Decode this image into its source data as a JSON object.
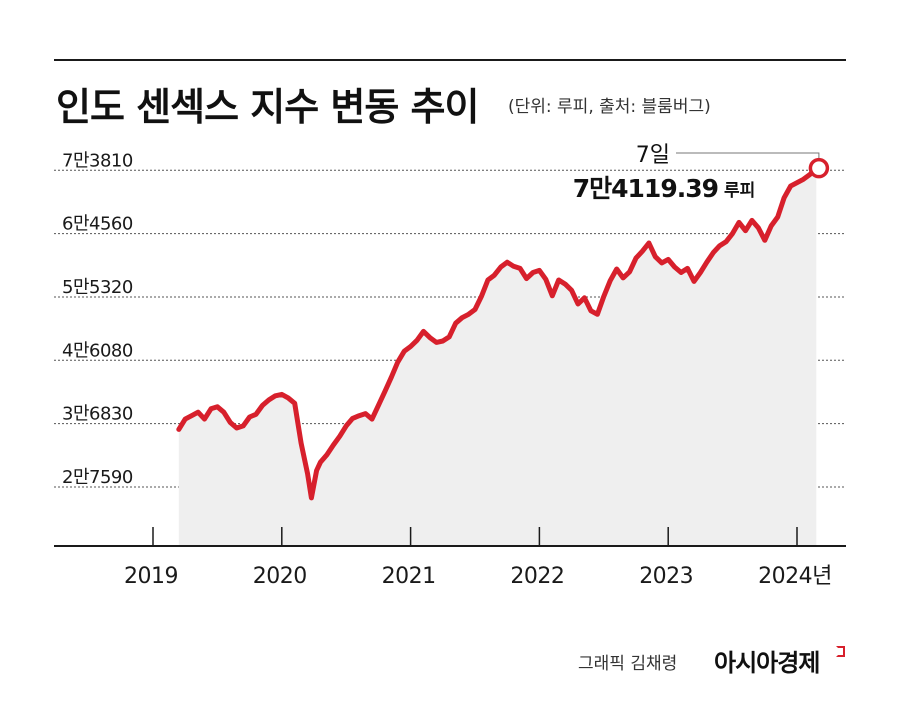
{
  "header": {
    "title": "인도 센섹스 지수 변동 추이",
    "subtitle": "(단위: 루피, 출처: 블룸버그)"
  },
  "footer": {
    "credit": "그래픽 김채령",
    "brand": "아시아경제"
  },
  "colors": {
    "line": "#d7202c",
    "area": "#efefef",
    "grid": "#555555",
    "text": "#1a1a1a"
  },
  "chart_data": {
    "type": "area",
    "title": "인도 센섹스 지수 변동 추이",
    "unit": "루피",
    "ylim": [
      20000,
      77500
    ],
    "yticks": [
      27590,
      36830,
      46080,
      55320,
      64560,
      73810
    ],
    "ytick_labels": [
      "2만7590",
      "3만6830",
      "4만6080",
      "5만5320",
      "6만4560",
      "7만3810"
    ],
    "xlim": [
      2018.98,
      2024.2
    ],
    "xticks": [
      2019,
      2020,
      2021,
      2022,
      2023,
      2024
    ],
    "xtick_labels": [
      "2019",
      "2020",
      "2021",
      "2022",
      "2023",
      "2024년"
    ],
    "grid": "horizontal-dashed",
    "series": [
      {
        "x": [
          2019.2,
          2019.25,
          2019.3,
          2019.35,
          2019.4,
          2019.45,
          2019.5,
          2019.55,
          2019.6,
          2019.65,
          2019.7,
          2019.75,
          2019.8,
          2019.85,
          2019.9,
          2019.95,
          2020.0,
          2020.05,
          2020.1,
          2020.15,
          2020.2,
          2020.23,
          2020.27,
          2020.3,
          2020.35,
          2020.4,
          2020.45,
          2020.5,
          2020.55,
          2020.6,
          2020.65,
          2020.7,
          2020.75,
          2020.8,
          2020.85,
          2020.9,
          2020.95,
          2021.0,
          2021.05,
          2021.1,
          2021.15,
          2021.2,
          2021.25,
          2021.3,
          2021.35,
          2021.4,
          2021.45,
          2021.5,
          2021.55,
          2021.6,
          2021.65,
          2021.7,
          2021.75,
          2021.8,
          2021.85,
          2021.9,
          2021.95,
          2022.0,
          2022.05,
          2022.1,
          2022.15,
          2022.2,
          2022.25,
          2022.3,
          2022.35,
          2022.4,
          2022.45,
          2022.5,
          2022.55,
          2022.6,
          2022.65,
          2022.7,
          2022.75,
          2022.8,
          2022.85,
          2022.9,
          2022.95,
          2023.0,
          2023.05,
          2023.1,
          2023.15,
          2023.2,
          2023.25,
          2023.3,
          2023.35,
          2023.4,
          2023.45,
          2023.5,
          2023.55,
          2023.6,
          2023.65,
          2023.7,
          2023.75,
          2023.8,
          2023.85,
          2023.9,
          2023.95,
          2024.0,
          2024.05,
          2024.1,
          2024.15
        ],
        "y": [
          36000,
          37500,
          38000,
          38500,
          37500,
          39000,
          39300,
          38500,
          37000,
          36200,
          36500,
          37800,
          38200,
          39500,
          40300,
          40900,
          41100,
          40600,
          39800,
          34000,
          29500,
          26000,
          30000,
          31200,
          32300,
          33700,
          35000,
          36500,
          37600,
          38000,
          38300,
          37500,
          39500,
          41500,
          43600,
          45800,
          47400,
          48100,
          49000,
          50300,
          49400,
          48700,
          48900,
          49500,
          51500,
          52300,
          52800,
          53500,
          55400,
          57800,
          58500,
          59700,
          60400,
          59800,
          59500,
          58000,
          58900,
          59200,
          57900,
          55500,
          57800,
          57200,
          56300,
          54300,
          55200,
          53300,
          52800,
          55400,
          57700,
          59400,
          58100,
          59000,
          61000,
          62000,
          63200,
          61200,
          60300,
          60800,
          59700,
          58900,
          59500,
          57600,
          58900,
          60400,
          61800,
          62800,
          63400,
          64600,
          66200,
          65000,
          66500,
          65400,
          63600,
          65700,
          67000,
          69800,
          71500,
          72000,
          72500,
          73200,
          74119.39
        ]
      }
    ],
    "annotation": {
      "date_label": "7일",
      "value_label": "7만4119.39",
      "unit_label": "루피",
      "x": 2024.17,
      "y": 74119.39
    }
  }
}
